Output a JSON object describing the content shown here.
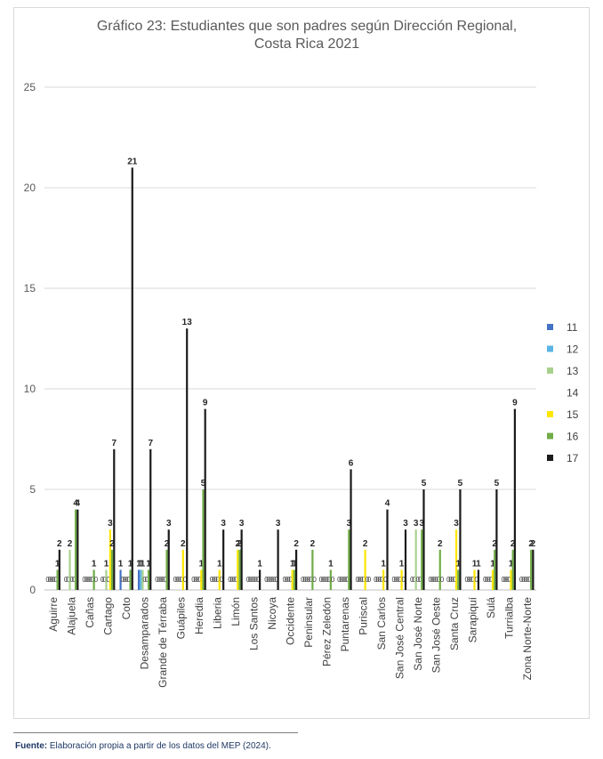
{
  "source": {
    "label": "Fuente:",
    "text": "Elaboración propia a partir de los datos del MEP (2024)."
  },
  "chart_data": {
    "type": "bar",
    "title": "Gráfico 23: Estudiantes que son padres según Dirección Regional, Costa Rica 2021",
    "title_lines": [
      "Gráfico 23: Estudiantes que son padres según Dirección Regional,",
      "Costa Rica 2021"
    ],
    "xlabel": "",
    "ylabel": "",
    "ylim": [
      0,
      25
    ],
    "yticks": [
      0,
      5,
      10,
      15,
      20,
      25
    ],
    "grid": true,
    "legend_position": "right",
    "categories": [
      "Aguirre",
      "Alajuela",
      "Cañas",
      "Cartago",
      "Coto",
      "Desamparados",
      "Grande de Térraba",
      "Guápiles",
      "Heredia",
      "Liberia",
      "Limón",
      "Los Santos",
      "Nicoya",
      "Occidente",
      "Peninsular",
      "Pérez Zeledón",
      "Puntarenas",
      "Puriscal",
      "San Carlos",
      "San José Central",
      "San José Norte",
      "San José Oeste",
      "Santa Cruz",
      "Sarapiquí",
      "Sulá",
      "Turrialba",
      "Zona Norte-Norte"
    ],
    "series": [
      {
        "name": "11",
        "color": "#4472c4",
        "values": [
          0,
          0,
          0,
          0,
          1,
          1,
          0,
          0,
          0,
          0,
          0,
          0,
          0,
          0,
          0,
          0,
          0,
          0,
          0,
          0,
          0,
          0,
          0,
          0,
          0,
          0,
          0
        ]
      },
      {
        "name": "12",
        "color": "#5ab4e5",
        "values": [
          0,
          0,
          0,
          0,
          0,
          1,
          0,
          0,
          0,
          0,
          0,
          0,
          0,
          0,
          0,
          0,
          0,
          0,
          0,
          0,
          0,
          0,
          0,
          0,
          0,
          0,
          0
        ]
      },
      {
        "name": "13",
        "color": "#a9d18e",
        "values": [
          0,
          2,
          0,
          1,
          0,
          1,
          0,
          0,
          0,
          0,
          0,
          0,
          0,
          0,
          0,
          0,
          0,
          0,
          0,
          0,
          3,
          0,
          0,
          0,
          0,
          0,
          0
        ]
      },
      {
        "name": "14",
        "color": "#ffffff",
        "values": [
          0,
          0,
          0,
          0,
          0,
          0,
          0,
          0,
          0,
          0,
          0,
          0,
          0,
          0,
          0,
          0,
          0,
          0,
          0,
          0,
          0,
          0,
          0,
          0,
          0,
          0,
          0
        ]
      },
      {
        "name": "15",
        "color": "#ffe600",
        "values": [
          0,
          0,
          0,
          3,
          0,
          0,
          0,
          2,
          1,
          1,
          2,
          0,
          0,
          1,
          0,
          0,
          0,
          2,
          1,
          1,
          0,
          0,
          3,
          1,
          1,
          1,
          0
        ]
      },
      {
        "name": "16",
        "color": "#70ad47",
        "values": [
          1,
          4,
          1,
          2,
          1,
          1,
          2,
          0,
          5,
          0,
          2,
          0,
          0,
          1,
          2,
          1,
          3,
          0,
          0,
          0,
          3,
          2,
          1,
          0,
          2,
          2,
          2
        ]
      },
      {
        "name": "17",
        "color": "#1a1a1a",
        "values": [
          2,
          4,
          0,
          7,
          21,
          7,
          3,
          13,
          9,
          3,
          3,
          1,
          3,
          2,
          0,
          0,
          6,
          0,
          4,
          3,
          5,
          0,
          5,
          1,
          5,
          9,
          2
        ]
      }
    ]
  }
}
